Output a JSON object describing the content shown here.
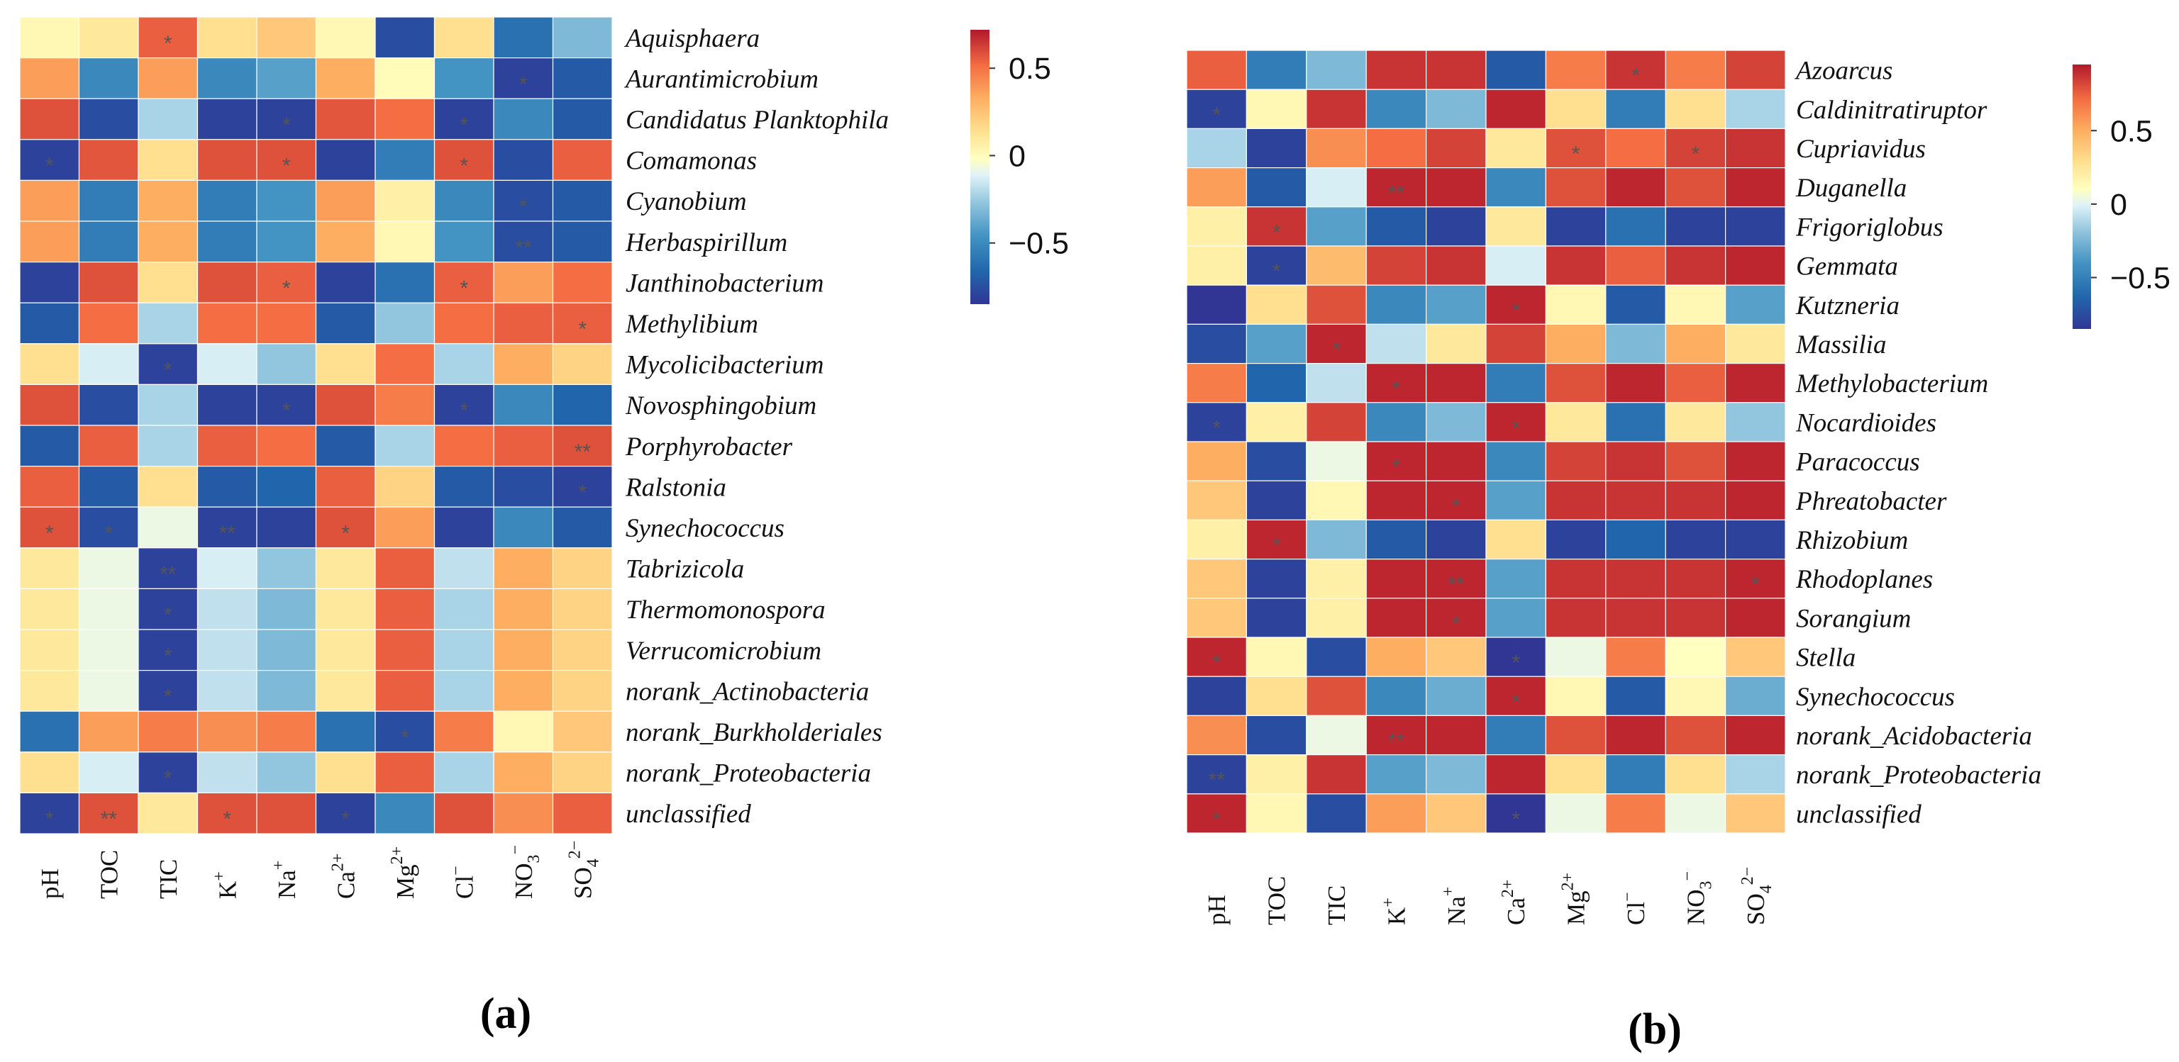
{
  "chart_data": [
    {
      "type": "heatmap",
      "panel_label": "(a)",
      "colorbar": {
        "ticks": [
          "0.5",
          "0",
          "−0.5"
        ],
        "tick_values": [
          0.5,
          0,
          -0.5
        ],
        "range": [
          -0.85,
          0.72
        ]
      },
      "columns": [
        {
          "base": "pH",
          "sup": "",
          "sub": ""
        },
        {
          "base": "TOC",
          "sup": "",
          "sub": ""
        },
        {
          "base": "TIC",
          "sup": "",
          "sub": ""
        },
        {
          "base": "K",
          "sup": "+",
          "sub": ""
        },
        {
          "base": "Na",
          "sup": "+",
          "sub": ""
        },
        {
          "base": "Ca",
          "sup": "2+",
          "sub": ""
        },
        {
          "base": "Mg",
          "sup": "2+",
          "sub": ""
        },
        {
          "base": "Cl",
          "sup": "−",
          "sub": ""
        },
        {
          "base": "NO",
          "sup": "−",
          "sub": "3"
        },
        {
          "base": "SO",
          "sup": "2−",
          "sub": "4"
        }
      ],
      "rows": [
        "Aquisphaera",
        "Aurantimicrobium",
        "Candidatus Planktophila",
        "Comamonas",
        "Cyanobium",
        "Herbaspirillum",
        "Janthinobacterium",
        "Methylibium",
        "Mycolicibacterium",
        "Novosphingobium",
        "Porphyrobacter",
        "Ralstonia",
        "Synechococcus",
        "Tabrizicola",
        "Thermomonospora",
        "Verrucomicrobium",
        "norank_Actinobacteria",
        "norank_Burkholderiales",
        "norank_Proteobacteria",
        "unclassified"
      ],
      "values": [
        [
          0.05,
          0.15,
          0.65,
          0.2,
          0.3,
          0.05,
          -0.75,
          0.2,
          -0.6,
          -0.3
        ],
        [
          0.45,
          -0.5,
          0.45,
          -0.5,
          -0.4,
          0.4,
          0.02,
          -0.45,
          -0.8,
          -0.7
        ],
        [
          0.7,
          -0.75,
          -0.2,
          -0.8,
          -0.8,
          0.68,
          0.6,
          -0.8,
          -0.5,
          -0.7
        ],
        [
          -0.8,
          0.68,
          0.2,
          0.7,
          0.7,
          -0.8,
          -0.55,
          0.7,
          -0.75,
          0.65
        ],
        [
          0.45,
          -0.55,
          0.4,
          -0.55,
          -0.45,
          0.45,
          0.1,
          -0.5,
          -0.75,
          -0.7
        ],
        [
          0.45,
          -0.55,
          0.4,
          -0.55,
          -0.45,
          0.4,
          0.05,
          -0.45,
          -0.75,
          -0.7
        ],
        [
          -0.8,
          0.7,
          0.2,
          0.7,
          0.65,
          -0.8,
          -0.6,
          0.65,
          0.45,
          0.6
        ],
        [
          -0.7,
          0.6,
          -0.2,
          0.6,
          0.6,
          -0.7,
          -0.25,
          0.6,
          0.65,
          0.65
        ],
        [
          0.2,
          -0.1,
          -0.8,
          -0.1,
          -0.25,
          0.2,
          0.6,
          -0.2,
          0.4,
          0.25
        ],
        [
          0.7,
          -0.75,
          -0.2,
          -0.8,
          -0.8,
          0.7,
          0.55,
          -0.8,
          -0.5,
          -0.65
        ],
        [
          -0.7,
          0.65,
          -0.2,
          0.65,
          0.6,
          -0.7,
          -0.2,
          0.6,
          0.65,
          0.7
        ],
        [
          0.65,
          -0.7,
          0.2,
          -0.7,
          -0.65,
          0.65,
          0.25,
          -0.7,
          -0.75,
          -0.8
        ],
        [
          0.7,
          -0.75,
          -0.05,
          -0.8,
          -0.8,
          0.7,
          0.45,
          -0.8,
          -0.5,
          -0.7
        ],
        [
          0.15,
          -0.05,
          -0.8,
          -0.1,
          -0.25,
          0.15,
          0.65,
          -0.15,
          0.4,
          0.25
        ],
        [
          0.15,
          -0.05,
          -0.8,
          -0.15,
          -0.3,
          0.15,
          0.65,
          -0.2,
          0.4,
          0.25
        ],
        [
          0.15,
          -0.05,
          -0.8,
          -0.15,
          -0.3,
          0.15,
          0.65,
          -0.2,
          0.4,
          0.25
        ],
        [
          0.15,
          -0.05,
          -0.8,
          -0.15,
          -0.3,
          0.15,
          0.65,
          -0.2,
          0.4,
          0.25
        ],
        [
          -0.6,
          0.45,
          0.55,
          0.5,
          0.55,
          -0.6,
          -0.75,
          0.55,
          0.05,
          0.3
        ],
        [
          0.2,
          -0.1,
          -0.8,
          -0.15,
          -0.25,
          0.2,
          0.65,
          -0.2,
          0.4,
          0.25
        ],
        [
          -0.8,
          0.7,
          0.15,
          0.7,
          0.7,
          -0.8,
          -0.5,
          0.7,
          0.5,
          0.65
        ]
      ],
      "significance": [
        [
          "",
          "",
          "*",
          "",
          "",
          "",
          "",
          "",
          "",
          ""
        ],
        [
          "",
          "",
          "",
          "",
          "",
          "",
          "",
          "",
          "*",
          ""
        ],
        [
          "",
          "",
          "",
          "",
          "*",
          "",
          "",
          "*",
          "",
          ""
        ],
        [
          "*",
          "",
          "",
          "",
          "*",
          "",
          "",
          "*",
          "",
          ""
        ],
        [
          "",
          "",
          "",
          "",
          "",
          "",
          "",
          "",
          "*",
          ""
        ],
        [
          "",
          "",
          "",
          "",
          "",
          "",
          "",
          "",
          "**",
          ""
        ],
        [
          "",
          "",
          "",
          "",
          "*",
          "",
          "",
          "*",
          "",
          ""
        ],
        [
          "",
          "",
          "",
          "",
          "",
          "",
          "",
          "",
          "",
          "*"
        ],
        [
          "",
          "",
          "*",
          "",
          "",
          "",
          "",
          "",
          "",
          ""
        ],
        [
          "",
          "",
          "",
          "",
          "*",
          "",
          "",
          "*",
          "",
          ""
        ],
        [
          "",
          "",
          "",
          "",
          "",
          "",
          "",
          "",
          "",
          "**"
        ],
        [
          "",
          "",
          "",
          "",
          "",
          "",
          "",
          "",
          "",
          "*"
        ],
        [
          "*",
          "*",
          "",
          "**",
          "",
          "*",
          "",
          "",
          "",
          ""
        ],
        [
          "",
          "",
          "**",
          "",
          "",
          "",
          "",
          "",
          "",
          ""
        ],
        [
          "",
          "",
          "*",
          "",
          "",
          "",
          "",
          "",
          "",
          ""
        ],
        [
          "",
          "",
          "*",
          "",
          "",
          "",
          "",
          "",
          "",
          ""
        ],
        [
          "",
          "",
          "*",
          "",
          "",
          "",
          "",
          "",
          "",
          ""
        ],
        [
          "",
          "",
          "",
          "",
          "",
          "",
          "*",
          "",
          "",
          ""
        ],
        [
          "",
          "",
          "*",
          "",
          "",
          "",
          "",
          "",
          "",
          ""
        ],
        [
          "*",
          "**",
          "",
          "*",
          "",
          "*",
          "",
          "",
          "",
          ""
        ]
      ]
    },
    {
      "type": "heatmap",
      "panel_label": "(b)",
      "colorbar": {
        "ticks": [
          "0.5",
          "0",
          "−0.5"
        ],
        "tick_values": [
          0.5,
          0,
          -0.5
        ],
        "range": [
          -0.85,
          0.95
        ]
      },
      "columns": [
        {
          "base": "pH",
          "sup": "",
          "sub": ""
        },
        {
          "base": "TOC",
          "sup": "",
          "sub": ""
        },
        {
          "base": "TIC",
          "sup": "",
          "sub": ""
        },
        {
          "base": "K",
          "sup": "+",
          "sub": ""
        },
        {
          "base": "Na",
          "sup": "+",
          "sub": ""
        },
        {
          "base": "Ca",
          "sup": "2+",
          "sub": ""
        },
        {
          "base": "Mg",
          "sup": "2+",
          "sub": ""
        },
        {
          "base": "Cl",
          "sup": "−",
          "sub": ""
        },
        {
          "base": "NO",
          "sup": "−",
          "sub": "3"
        },
        {
          "base": "SO",
          "sup": "2−",
          "sub": "4"
        }
      ],
      "rows": [
        "Azoarcus",
        "Caldinitratiruptor",
        "Cupriavidus",
        "Duganella",
        "Frigoriglobus",
        "Gemmata",
        "Kutzneria",
        "Massilia",
        "Methylobacterium",
        "Nocardioides",
        "Paracoccus",
        "Phreatobacter",
        "Rhizobium",
        "Rhodoplanes",
        "Sorangium",
        "Stella",
        "Synechococcus",
        "norank_Acidobacteria",
        "norank_Proteobacteria",
        "unclassified"
      ],
      "values": [
        [
          0.65,
          -0.55,
          -0.3,
          0.8,
          0.8,
          -0.7,
          0.55,
          0.8,
          0.55,
          0.75
        ],
        [
          -0.8,
          0.05,
          0.8,
          -0.5,
          -0.3,
          0.85,
          0.2,
          -0.55,
          0.2,
          -0.2
        ],
        [
          -0.2,
          -0.8,
          0.5,
          0.6,
          0.75,
          0.15,
          0.7,
          0.6,
          0.75,
          0.8
        ],
        [
          0.45,
          -0.7,
          -0.1,
          0.85,
          0.85,
          -0.5,
          0.7,
          0.85,
          0.7,
          0.85
        ],
        [
          0.1,
          0.8,
          -0.4,
          -0.7,
          -0.8,
          0.15,
          -0.8,
          -0.6,
          -0.8,
          -0.8
        ],
        [
          0.1,
          -0.8,
          0.35,
          0.75,
          0.8,
          -0.1,
          0.8,
          0.65,
          0.8,
          0.85
        ],
        [
          -0.85,
          0.2,
          0.7,
          -0.5,
          -0.4,
          0.85,
          0.05,
          -0.7,
          0.05,
          -0.4
        ],
        [
          -0.75,
          -0.4,
          0.85,
          -0.15,
          0.15,
          0.75,
          0.4,
          -0.3,
          0.4,
          0.15
        ],
        [
          0.55,
          -0.65,
          -0.15,
          0.85,
          0.85,
          -0.55,
          0.7,
          0.85,
          0.65,
          0.85
        ],
        [
          -0.8,
          0.1,
          0.75,
          -0.5,
          -0.3,
          0.85,
          0.15,
          -0.6,
          0.15,
          -0.25
        ],
        [
          0.4,
          -0.75,
          -0.05,
          0.85,
          0.85,
          -0.5,
          0.75,
          0.8,
          0.7,
          0.85
        ],
        [
          0.3,
          -0.8,
          0.05,
          0.85,
          0.85,
          -0.4,
          0.8,
          0.8,
          0.8,
          0.85
        ],
        [
          0.1,
          0.85,
          -0.3,
          -0.7,
          -0.8,
          0.2,
          -0.8,
          -0.65,
          -0.8,
          -0.8
        ],
        [
          0.3,
          -0.8,
          0.1,
          0.85,
          0.85,
          -0.4,
          0.8,
          0.8,
          0.8,
          0.85
        ],
        [
          0.3,
          -0.8,
          0.1,
          0.85,
          0.85,
          -0.4,
          0.8,
          0.8,
          0.8,
          0.85
        ],
        [
          0.85,
          0.05,
          -0.75,
          0.4,
          0.3,
          -0.85,
          -0.05,
          0.55,
          0.0,
          0.3
        ],
        [
          -0.8,
          0.2,
          0.7,
          -0.5,
          -0.35,
          0.85,
          0.05,
          -0.7,
          0.05,
          -0.35
        ],
        [
          0.5,
          -0.75,
          -0.05,
          0.85,
          0.85,
          -0.55,
          0.7,
          0.85,
          0.7,
          0.85
        ],
        [
          -0.8,
          0.1,
          0.8,
          -0.4,
          -0.3,
          0.85,
          0.2,
          -0.55,
          0.2,
          -0.2
        ],
        [
          0.85,
          0.05,
          -0.75,
          0.45,
          0.3,
          -0.85,
          -0.05,
          0.55,
          -0.05,
          0.3
        ]
      ],
      "significance": [
        [
          "",
          "",
          "",
          "",
          "",
          "",
          "",
          "*",
          "",
          ""
        ],
        [
          "*",
          "",
          "",
          "",
          "",
          "",
          "",
          "",
          "",
          ""
        ],
        [
          "",
          "",
          "",
          "",
          "",
          "",
          "*",
          "",
          "*",
          ""
        ],
        [
          "",
          "",
          "",
          "**",
          "",
          "",
          "",
          "",
          "",
          ""
        ],
        [
          "",
          "*",
          "",
          "",
          "",
          "",
          "",
          "",
          "",
          ""
        ],
        [
          "",
          "*",
          "",
          "",
          "",
          "",
          "",
          "",
          "",
          ""
        ],
        [
          "",
          "",
          "",
          "",
          "",
          "*",
          "",
          "",
          "",
          ""
        ],
        [
          "",
          "",
          "*",
          "",
          "",
          "",
          "",
          "",
          "",
          ""
        ],
        [
          "",
          "",
          "",
          "*",
          "",
          "",
          "",
          "",
          "",
          ""
        ],
        [
          "*",
          "",
          "",
          "",
          "",
          "*",
          "",
          "",
          "",
          ""
        ],
        [
          "",
          "",
          "",
          "*",
          "",
          "",
          "",
          "",
          "",
          ""
        ],
        [
          "",
          "",
          "",
          "",
          "*",
          "",
          "",
          "",
          "",
          ""
        ],
        [
          "",
          "*",
          "",
          "",
          "",
          "",
          "",
          "",
          "",
          ""
        ],
        [
          "",
          "",
          "",
          "",
          "**",
          "",
          "",
          "",
          "",
          "*"
        ],
        [
          "",
          "",
          "",
          "",
          "*",
          "",
          "",
          "",
          "",
          ""
        ],
        [
          "*",
          "",
          "",
          "",
          "",
          "*",
          "",
          "",
          "",
          ""
        ],
        [
          "",
          "",
          "",
          "",
          "",
          "*",
          "",
          "",
          "",
          ""
        ],
        [
          "",
          "",
          "",
          "**",
          "",
          "",
          "",
          "",
          "",
          ""
        ],
        [
          "**",
          "",
          "",
          "",
          "",
          "",
          "",
          "",
          "",
          ""
        ],
        [
          "*",
          "",
          "",
          "",
          "",
          "*",
          "",
          "",
          "",
          ""
        ]
      ]
    }
  ]
}
